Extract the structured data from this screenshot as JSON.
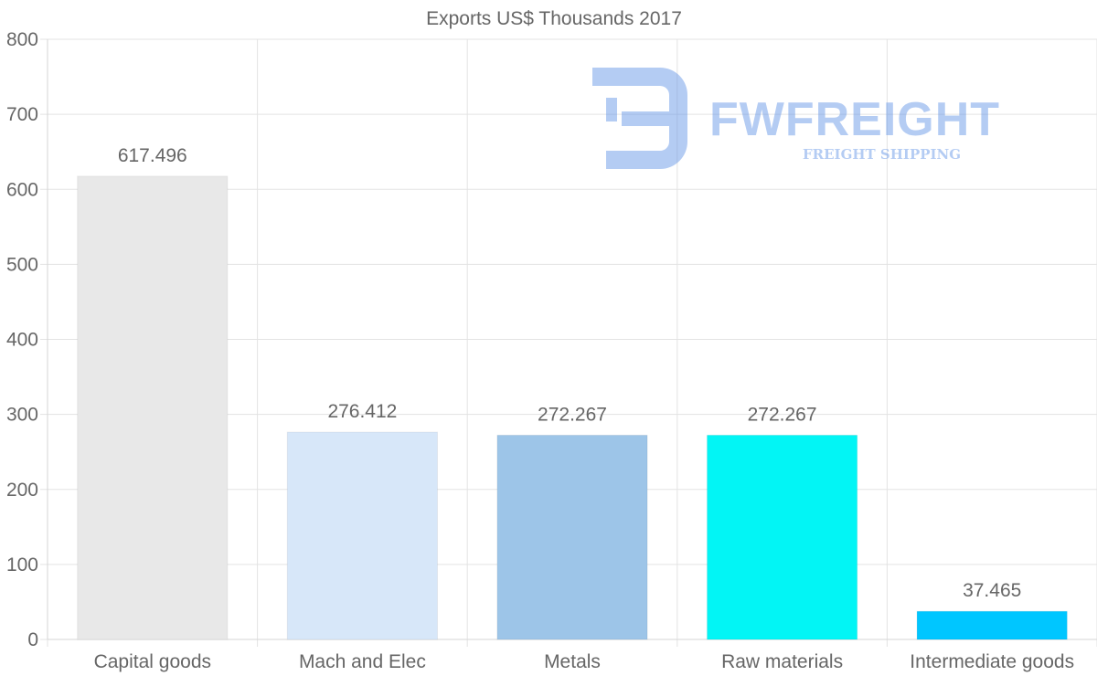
{
  "chart_data": {
    "type": "bar",
    "title": "Exports US$ Thousands 2017",
    "categories": [
      "Capital goods",
      "Mach and Elec",
      "Metals",
      "Raw materials",
      "Intermediate goods"
    ],
    "values": [
      617.496,
      276.412,
      272.267,
      272.267,
      37.465
    ],
    "value_labels": [
      "617.496",
      "276.412",
      "272.267",
      "272.267",
      "37.465"
    ],
    "colors": [
      "#e8e8e8",
      "#d7e7f9",
      "#9dc5e8",
      "#02f5f5",
      "#00c6ff"
    ],
    "ylim": [
      0,
      800
    ],
    "yticks": [
      0,
      100,
      200,
      300,
      400,
      500,
      600,
      700,
      800
    ],
    "xlabel": "",
    "ylabel": "",
    "grid": true,
    "legend": "none"
  },
  "watermark": {
    "brand": "FWFREIGHT",
    "tagline": "FREIGHT SHIPPING",
    "color": "#5b8fe6"
  }
}
